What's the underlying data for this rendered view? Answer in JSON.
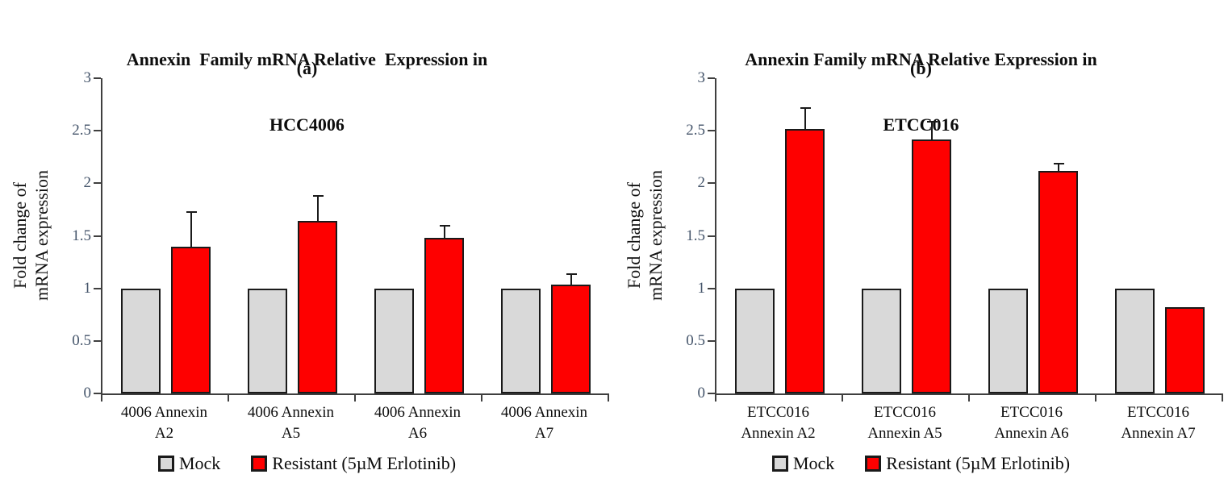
{
  "page": {
    "background": "#FFFFFF"
  },
  "chart_data": [
    {
      "type": "bar",
      "title_line1": "Annexin  Family mRNA Relative  Expression in",
      "title_line2": "HCC4006",
      "panel_label": "(a)",
      "ylabel_line1": "Fold change of",
      "ylabel_line2": "mRNA expression",
      "ylim": [
        0,
        3
      ],
      "yticks": [
        "0",
        "0.5",
        "1",
        "1.5",
        "2",
        "2.5",
        "3"
      ],
      "categories": [
        {
          "line1": "4006 Annexin",
          "line2": "A2"
        },
        {
          "line1": "4006 Annexin",
          "line2": "A5"
        },
        {
          "line1": "4006 Annexin",
          "line2": "A6"
        },
        {
          "line1": "4006 Annexin",
          "line2": "A7"
        }
      ],
      "series": [
        {
          "name": "Mock",
          "color": "#D9D9D9",
          "values": [
            1,
            1,
            1,
            1
          ],
          "errors": [
            0,
            0,
            0,
            0
          ]
        },
        {
          "name": "Resistant (5µM Erlotinib)",
          "color": "#FE0000",
          "values": [
            1.4,
            1.64,
            1.48,
            1.04
          ],
          "errors": [
            0.35,
            0.26,
            0.14,
            0.12
          ]
        }
      ],
      "axis_color": "#3F3F3F",
      "tick_label_color": "#44546A",
      "bar_border_color": "#1A1A1A",
      "grid": "off",
      "legend_position": "bottom"
    },
    {
      "type": "bar",
      "title_line1": "Annexin Family mRNA Relative Expression in",
      "title_line2": "ETCC016",
      "panel_label": "(b)",
      "ylabel_line1": "Fold change of",
      "ylabel_line2": "mRNA expression",
      "ylim": [
        0,
        3
      ],
      "yticks": [
        "0",
        "0.5",
        "1",
        "1.5",
        "2",
        "2.5",
        "3"
      ],
      "categories": [
        {
          "line1": "ETCC016",
          "line2": "Annexin A2"
        },
        {
          "line1": "ETCC016",
          "line2": "Annexin A5"
        },
        {
          "line1": "ETCC016",
          "line2": "Annexin A6"
        },
        {
          "line1": "ETCC016",
          "line2": "Annexin A7"
        }
      ],
      "series": [
        {
          "name": "Mock",
          "color": "#D9D9D9",
          "values": [
            1,
            1,
            1,
            1
          ],
          "errors": [
            0,
            0,
            0,
            0
          ]
        },
        {
          "name": "Resistant (5µM Erlotinib)",
          "color": "#FE0000",
          "values": [
            2.52,
            2.42,
            2.12,
            0.82
          ],
          "errors": [
            0.22,
            0.19,
            0.09,
            0.02
          ]
        }
      ],
      "axis_color": "#3F3F3F",
      "tick_label_color": "#44546A",
      "bar_border_color": "#1A1A1A",
      "grid": "off",
      "legend_position": "bottom"
    }
  ]
}
